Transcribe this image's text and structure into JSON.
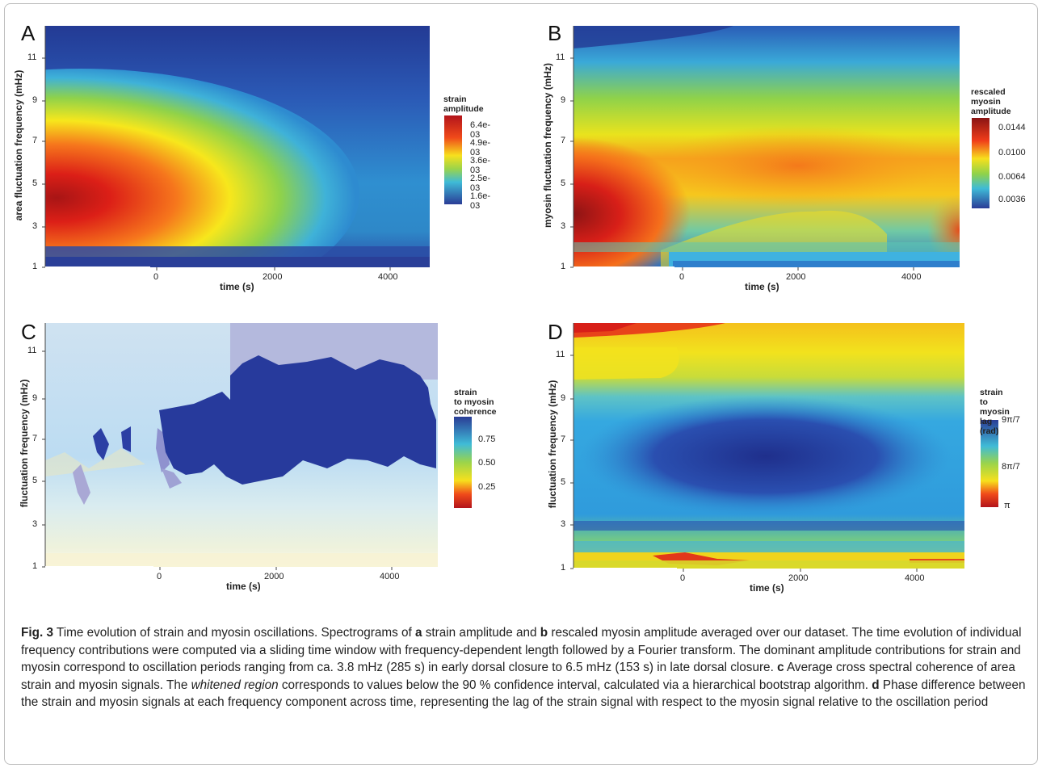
{
  "panels": [
    {
      "letter": "A",
      "ylabel": "area fluctuation frequency (mHz)",
      "xlabel": "time (s)",
      "yticks": [
        "1",
        "3",
        "5",
        "7",
        "9",
        "11"
      ],
      "xticks": [
        "0",
        "2000",
        "4000"
      ],
      "legend_title": [
        "strain",
        "amplitude"
      ],
      "legend_labels": [
        "6.4e-03",
        "4.9e-03",
        "3.6e-03",
        "2.5e-03",
        "1.6e-03"
      ]
    },
    {
      "letter": "B",
      "ylabel": "myosin fluctuation frequency (mHz)",
      "xlabel": "time (s)",
      "yticks": [
        "1",
        "3",
        "5",
        "7",
        "9",
        "11"
      ],
      "xticks": [
        "0",
        "2000",
        "4000"
      ],
      "legend_title": [
        "rescaled",
        "myosin",
        "amplitude"
      ],
      "legend_labels": [
        "0.0144",
        "0.0100",
        "0.0064",
        "0.0036"
      ]
    },
    {
      "letter": "C",
      "ylabel": "fluctuation frequency (mHz)",
      "xlabel": "time (s)",
      "yticks": [
        "1",
        "3",
        "5",
        "7",
        "9",
        "11"
      ],
      "xticks": [
        "0",
        "2000",
        "4000"
      ],
      "legend_title": [
        "strain",
        "to myosin",
        "coherence"
      ],
      "legend_labels": [
        "0.75",
        "0.50",
        "0.25"
      ]
    },
    {
      "letter": "D",
      "ylabel": "fluctuation frequency (mHz)",
      "xlabel": "time (s)",
      "yticks": [
        "1",
        "3",
        "5",
        "7",
        "9",
        "11"
      ],
      "xticks": [
        "0",
        "2000",
        "4000"
      ],
      "legend_title": [
        "strain",
        "to myosin",
        "lag (rad)"
      ],
      "legend_labels": [
        "9π/7",
        "8π/7",
        "π"
      ]
    }
  ],
  "chart_data": [
    {
      "type": "heatmap",
      "panel": "A",
      "x_range": [
        -1700,
        4800
      ],
      "y_range": [
        1,
        12
      ],
      "xticks": [
        0,
        2000,
        4000
      ],
      "yticks": [
        1,
        3,
        5,
        7,
        9,
        11
      ],
      "xlabel": "time (s)",
      "ylabel": "area fluctuation frequency (mHz)",
      "colorbar_ticks": [
        0.0064,
        0.0049,
        0.0036,
        0.0025,
        0.0016
      ],
      "peak": {
        "time": -1500,
        "frequency": 3.8
      }
    },
    {
      "type": "heatmap",
      "panel": "B",
      "x_range": [
        -1700,
        4800
      ],
      "y_range": [
        1,
        12
      ],
      "xticks": [
        0,
        2000,
        4000
      ],
      "yticks": [
        1,
        3,
        5,
        7,
        9,
        11
      ],
      "xlabel": "time (s)",
      "ylabel": "myosin fluctuation frequency (mHz)",
      "colorbar_ticks": [
        0.0144,
        0.01,
        0.0064,
        0.0036
      ],
      "peak": {
        "time": -1500,
        "frequency": 3.5
      }
    },
    {
      "type": "heatmap",
      "panel": "C",
      "x_range": [
        -1700,
        4800
      ],
      "y_range": [
        1,
        12
      ],
      "xticks": [
        0,
        2000,
        4000
      ],
      "yticks": [
        1,
        3,
        5,
        7,
        9,
        11
      ],
      "xlabel": "time (s)",
      "ylabel": "fluctuation frequency (mHz)",
      "colorbar_ticks": [
        0.75,
        0.5,
        0.25
      ]
    },
    {
      "type": "heatmap",
      "panel": "D",
      "x_range": [
        -1700,
        4800
      ],
      "y_range": [
        1,
        12
      ],
      "xticks": [
        0,
        2000,
        4000
      ],
      "yticks": [
        1,
        3,
        5,
        7,
        9,
        11
      ],
      "xlabel": "time (s)",
      "ylabel": "fluctuation frequency (mHz)",
      "colorbar_ticks": [
        "9π/7",
        "8π/7",
        "π"
      ]
    }
  ],
  "caption": {
    "fig_label": "Fig. 3",
    "seg1": " Time evolution of strain and myosin oscillations. Spectrograms of ",
    "a": "a",
    "seg2": " strain amplitude and ",
    "b": "b",
    "seg3": " rescaled myosin amplitude averaged over our dataset. The time evolution of individual frequency contributions were computed via a sliding time window with frequency-dependent length followed by a Fourier transform. The dominant amplitude contributions for strain and myosin correspond to oscillation periods ranging from ca. 3.8 mHz (285 s) in early dorsal closure to 6.5 mHz (153 s) in late dorsal closure. ",
    "c": "c",
    "seg4": " Average cross spectral coherence of area strain and myosin signals. The ",
    "whitened": "whitened region",
    "seg5": " corresponds to values below the 90 % confidence interval, calculated via a hierarchical bootstrap algorithm. ",
    "d": "d",
    "seg6": " Phase difference between the strain and myosin signals at each frequency component across time, representing the lag of the strain signal with respect to the myosin signal relative to the oscillation period"
  }
}
